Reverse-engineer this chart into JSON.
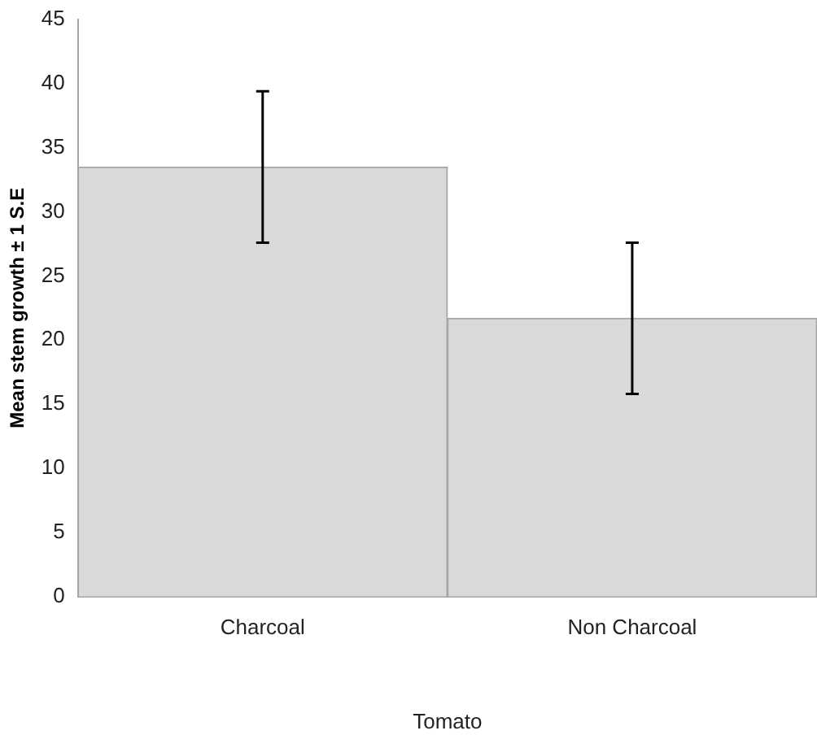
{
  "chart_data": {
    "type": "bar",
    "xlabel": "Tomato",
    "ylabel": "Mean stem growth ± 1 S.E",
    "categories": [
      "Charcoal",
      "Non Charcoal"
    ],
    "values": [
      33.5,
      21.7
    ],
    "errors": [
      5.9,
      5.9
    ],
    "color": "#d9d9d9",
    "ylim": [
      0,
      45
    ],
    "yticks": [
      0,
      5,
      10,
      15,
      20,
      25,
      30,
      35,
      40,
      45
    ],
    "grid": false,
    "legend": false
  }
}
